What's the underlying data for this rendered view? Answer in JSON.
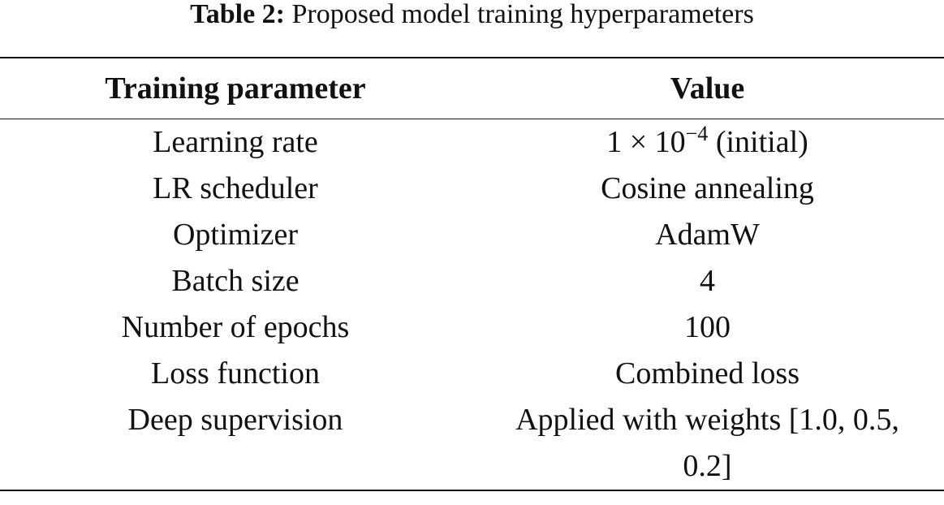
{
  "caption": {
    "label": "Table 2:",
    "text": "Proposed model training hyperparameters"
  },
  "table": {
    "header": [
      "Training parameter",
      "Value"
    ],
    "rows": [
      [
        "Learning rate",
        {
          "base": "1 × 10",
          "exponent": "−4",
          "suffix": "(initial)"
        }
      ],
      [
        "LR scheduler",
        "Cosine annealing"
      ],
      [
        "Optimizer",
        "AdamW"
      ],
      [
        "Batch size",
        "4"
      ],
      [
        "Number of epochs",
        "100"
      ],
      [
        "Loss function",
        "Combined loss"
      ],
      [
        "Deep supervision",
        "Applied with weights [1.0, 0.5, 0.2]"
      ]
    ]
  }
}
